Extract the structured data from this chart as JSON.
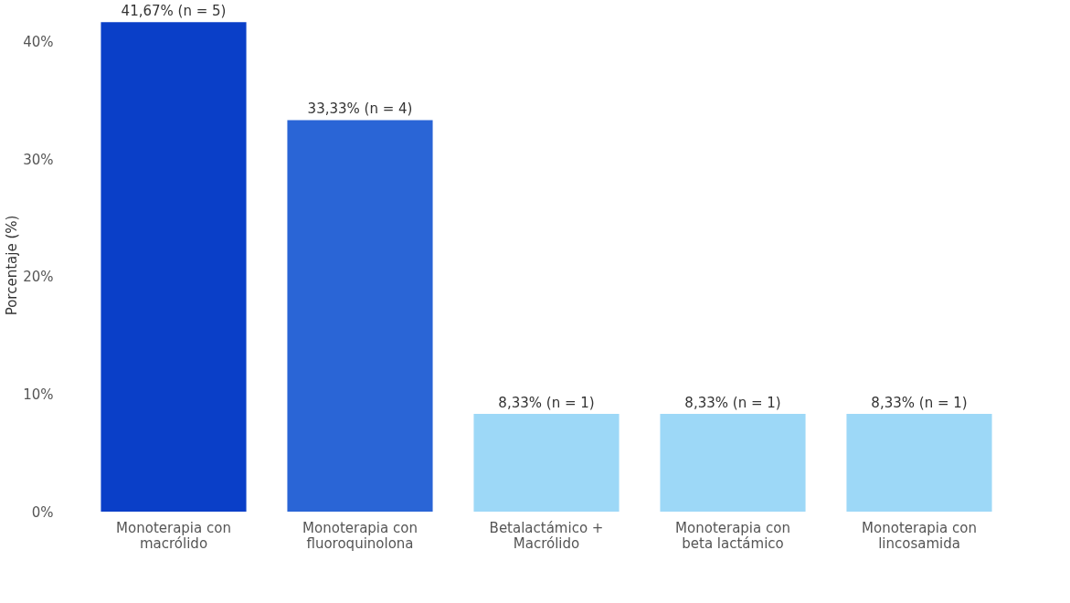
{
  "chart_data": {
    "type": "bar",
    "ylabel": "Porcentaje (%)",
    "categories": [
      "Monoterapia con macrólido",
      "Monoterapia con fluoroquinolona",
      "Betalactámico + Macrólido",
      "Monoterapia con beta lactámico",
      "Monoterapia con lincosamida"
    ],
    "values": [
      41.67,
      33.33,
      8.33,
      8.33,
      8.33
    ],
    "colors": [
      "#0a3fc8",
      "#2a65d6",
      "#9dd8f7",
      "#9dd8f7",
      "#9dd8f7"
    ],
    "value_labels": [
      "41,67%   (n = 5)",
      "33,33%   (n = 4)",
      "8,33%   (n = 1)",
      "8,33%   (n = 1)",
      "8,33%   (n = 1)"
    ],
    "ylim": [
      0,
      42
    ],
    "yticks": [
      {
        "value": 0,
        "label": "0%"
      },
      {
        "value": 10,
        "label": "10%"
      },
      {
        "value": 20,
        "label": "20%"
      },
      {
        "value": 30,
        "label": "30%"
      },
      {
        "value": 40,
        "label": "40%"
      }
    ],
    "grid": false
  }
}
